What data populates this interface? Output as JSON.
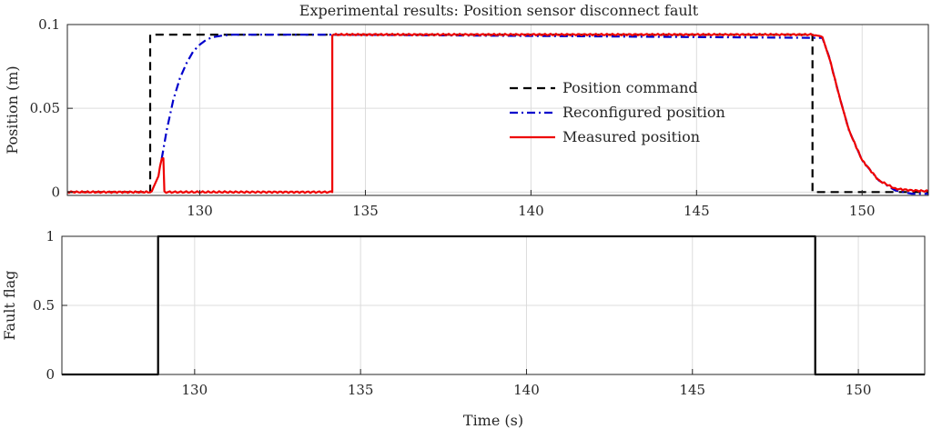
{
  "chart_data": [
    {
      "type": "line",
      "title": "Experimental results: Position sensor disconnect fault",
      "xlabel": "",
      "ylabel": "Position (m)",
      "xlim": [
        126,
        152
      ],
      "ylim": [
        -0.002,
        0.1
      ],
      "xticks": [
        130,
        135,
        140,
        145,
        150
      ],
      "xtick_labels": [
        "130",
        "135",
        "140",
        "145",
        "150"
      ],
      "yticks": [
        0,
        0.05,
        0.1
      ],
      "ytick_labels": [
        "0",
        "0.05",
        "0.1"
      ],
      "grid": true,
      "legend_position": "center-right",
      "series": [
        {
          "name": "Position command",
          "color": "#000000",
          "style": "dashed",
          "x": [
            126,
            128.5,
            128.5,
            148.5,
            148.5,
            152
          ],
          "y": [
            0,
            0,
            0.094,
            0.094,
            0,
            0
          ]
        },
        {
          "name": "Reconfigured position",
          "color": "#0000cc",
          "style": "dashdot",
          "x": [
            128.85,
            129.0,
            129.2,
            129.4,
            129.6,
            129.8,
            130.0,
            130.2,
            130.4,
            130.7,
            131.0,
            131.5,
            132.0,
            133.0,
            134.0,
            148.8,
            149.0,
            149.3,
            149.6,
            150.0,
            150.5,
            151.0,
            151.5,
            152.0
          ],
          "y": [
            0.02,
            0.037,
            0.055,
            0.068,
            0.077,
            0.084,
            0.088,
            0.091,
            0.0925,
            0.0935,
            0.094,
            0.094,
            0.094,
            0.094,
            0.094,
            0.092,
            0.081,
            0.058,
            0.037,
            0.019,
            0.007,
            0.001,
            -0.001,
            -0.001
          ]
        },
        {
          "name": "Measured position",
          "color": "#ee0000",
          "style": "solid",
          "x": [
            126,
            128.55,
            128.65,
            128.75,
            128.8,
            128.85,
            128.9,
            128.93,
            134.0,
            134.0,
            148.5,
            148.6,
            148.7,
            148.8,
            149.0,
            149.3,
            149.6,
            150.0,
            150.5,
            151.0,
            151.5,
            152.0
          ],
          "y": [
            0,
            0,
            0.005,
            0.01,
            0.016,
            0.02,
            0.02,
            0,
            0,
            0.094,
            0.094,
            0.094,
            0.093,
            0.092,
            0.081,
            0.058,
            0.037,
            0.019,
            0.007,
            0.002,
            0.001,
            0.0005
          ]
        }
      ]
    },
    {
      "type": "line",
      "title": "",
      "xlabel": "Time (s)",
      "ylabel": "Fault flag",
      "xlim": [
        126,
        152
      ],
      "ylim": [
        0,
        1
      ],
      "xticks": [
        130,
        135,
        140,
        145,
        150
      ],
      "xtick_labels": [
        "130",
        "135",
        "140",
        "145",
        "150"
      ],
      "yticks": [
        0,
        0.5,
        1
      ],
      "ytick_labels": [
        "0",
        "0.5",
        "1"
      ],
      "grid": true,
      "series": [
        {
          "color": "#000000",
          "style": "solid",
          "x": [
            126,
            128.9,
            128.9,
            148.7,
            148.7,
            152
          ],
          "y": [
            0,
            0,
            1,
            1,
            0,
            0
          ]
        }
      ]
    }
  ]
}
